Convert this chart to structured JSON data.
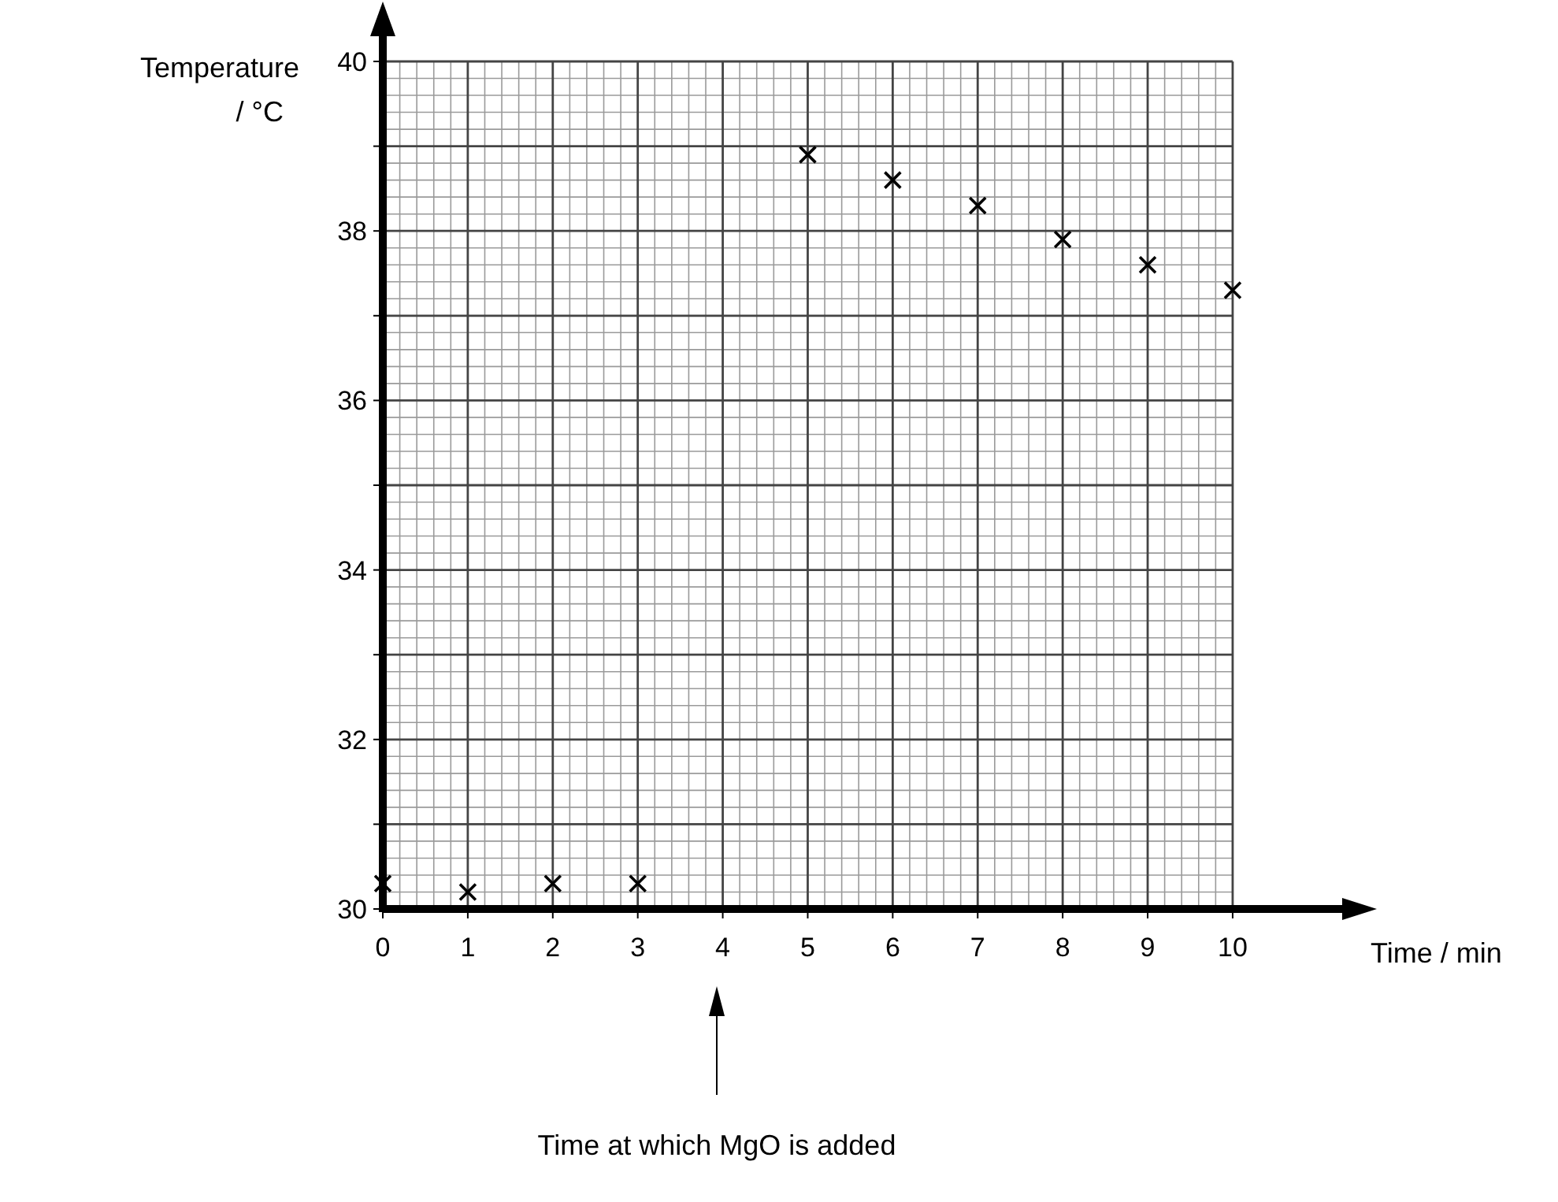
{
  "chart_data": {
    "type": "scatter",
    "xlabel": "Time / min",
    "ylabel": "Temperature / °C",
    "x": [
      0,
      1,
      2,
      3,
      5,
      6,
      7,
      8,
      9,
      10
    ],
    "values": [
      30.3,
      30.2,
      30.3,
      30.3,
      38.9,
      38.6,
      38.3,
      37.9,
      37.6,
      37.3
    ],
    "color": "#000000",
    "marker": "cross",
    "grid": true,
    "xlim": [
      0,
      11.4
    ],
    "xticks": [
      0,
      1,
      2,
      3,
      4,
      5,
      6,
      7,
      8,
      9,
      10
    ],
    "ylim": [
      30,
      40
    ],
    "yticks": [
      30,
      {
        "value": 31,
        "label": null
      },
      32,
      {
        "value": 33,
        "label": null
      },
      34,
      {
        "value": 35,
        "label": null
      },
      36,
      {
        "value": 37,
        "label": null
      },
      38,
      {
        "value": 39,
        "label": null
      },
      40
    ],
    "annotations": [
      "Time at which MgO is added"
    ]
  }
}
